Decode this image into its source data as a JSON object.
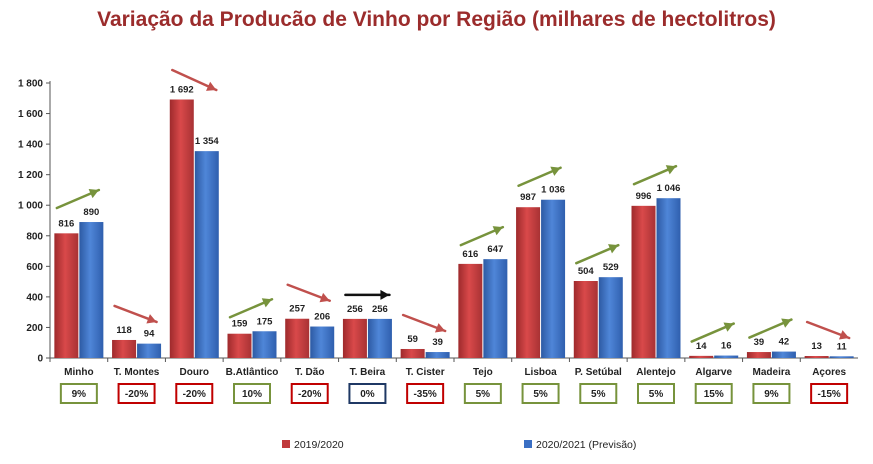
{
  "chart_data": {
    "type": "bar",
    "title": "Variação da Producão de Vinho por Região (milhares de hectolitros)",
    "xlabel": "",
    "ylabel": "",
    "ylim": [
      0,
      1800
    ],
    "y_ticks": [
      0,
      200,
      400,
      600,
      800,
      1000,
      1200,
      1400,
      1600,
      1800
    ],
    "y_tick_labels": [
      "0",
      "200",
      "400",
      "600",
      "800",
      "1 000",
      "1 200",
      "1 400",
      "1 600",
      "1 800"
    ],
    "grid": false,
    "legend_position": "bottom",
    "categories": [
      "Minho",
      "T. Montes",
      "Douro",
      "B.Atlântico",
      "T. Dão",
      "T. Beira",
      "T. Cister",
      "Tejo",
      "Lisboa",
      "P. Setúbal",
      "Alentejo",
      "Algarve",
      "Madeira",
      "Açores"
    ],
    "series": [
      {
        "name": "2019/2020",
        "color": "#c0393b",
        "values": [
          816,
          118,
          1692,
          159,
          257,
          256,
          59,
          616,
          987,
          504,
          996,
          14,
          39,
          13
        ],
        "labels": [
          "816",
          "118",
          "1 692",
          "159",
          "257",
          "256",
          "59",
          "616",
          "987",
          "504",
          "996",
          "14",
          "39",
          "13"
        ]
      },
      {
        "name": "2020/2021 (Previsão)",
        "color": "#3a6fc4",
        "values": [
          890,
          94,
          1354,
          175,
          206,
          256,
          39,
          647,
          1036,
          529,
          1046,
          16,
          42,
          11
        ],
        "labels": [
          "890",
          "94",
          "1 354",
          "175",
          "206",
          "256",
          "39",
          "647",
          "1 036",
          "529",
          "1 046",
          "16",
          "42",
          "11"
        ]
      }
    ],
    "changes": [
      "9%",
      "-20%",
      "-20%",
      "10%",
      "-20%",
      "0%",
      "-35%",
      "5%",
      "5%",
      "5%",
      "5%",
      "15%",
      "9%",
      "-15%"
    ],
    "trend": [
      "up",
      "down",
      "down",
      "up",
      "down",
      "flat",
      "down",
      "up",
      "up",
      "up",
      "up",
      "up",
      "up",
      "down"
    ],
    "trend_colors": {
      "up": "#77933c",
      "down": "#c0504d",
      "flat": "#111111"
    },
    "box_colors": {
      "up": "#77933c",
      "down": "#c00000",
      "flat": "#1f3864"
    }
  }
}
